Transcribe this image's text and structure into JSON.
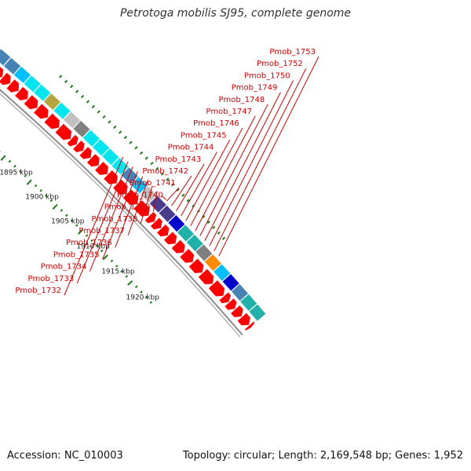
{
  "title": "Petrotoga mobilis SJ95, complete genome",
  "accession": "Accession: NC_010003",
  "stats": "Topology: circular; Length: 2,169,548 bp; Genes: 1,952",
  "colors": {
    "cds_red": "#ff0000",
    "cog_cyan": "#00e5ee",
    "cog_teal": "#20b2aa",
    "cog_steelblue": "#4682b4",
    "cog_sky": "#00bfff",
    "cog_darkslate": "#483d8b",
    "cog_blue": "#0000cd",
    "cog_orange": "#ff8c00",
    "cog_gray": "#808080",
    "cog_lightgray": "#c0c0c0",
    "cog_khaki": "#b5a642",
    "gene_label": "#cc0000",
    "tick": "#1a7a1a",
    "backbone": "#8c8c8c"
  },
  "scale_ticks": [
    {
      "label": "1895 kbp"
    },
    {
      "label": "1900 kbp"
    },
    {
      "label": "1905 kbp"
    },
    {
      "label": "1910 kbp"
    },
    {
      "label": "1915 kbp"
    },
    {
      "label": "1920 kbp"
    }
  ],
  "gene_labels": [
    "Pmob_1732",
    "Pmob_1733",
    "Pmob_1734",
    "Pmob_1735",
    "Pmob_1736",
    "Pmob_1737",
    "Pmob_1738",
    "Pmob_1739",
    "Pmob_1740",
    "Pmob_1741",
    "Pmob_1742",
    "Pmob_1743",
    "Pmob_1744",
    "Pmob_1745",
    "Pmob_1746",
    "Pmob_1747",
    "Pmob_1748",
    "Pmob_1749",
    "Pmob_1750",
    "Pmob_1752",
    "Pmob_1753"
  ],
  "cog_blocks": [
    "steelblue",
    "steelblue",
    "sky",
    "cyan",
    "cyan",
    "khaki",
    "cyan",
    "lightgray",
    "gray",
    "cyan",
    "cyan",
    "cyan",
    "cyan",
    "steelblue",
    "sky",
    "lightgray",
    "darkslate",
    "darkslate",
    "blue",
    "teal",
    "teal",
    "gray",
    "orange",
    "sky",
    "blue",
    "steelblue",
    "teal",
    "teal"
  ]
}
